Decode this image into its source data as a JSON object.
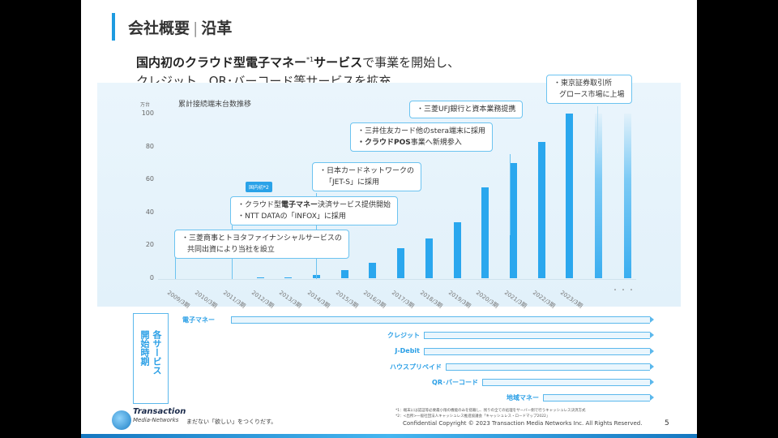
{
  "title": {
    "main": "会社概要",
    "sep": "|",
    "sub": "沿革"
  },
  "headline": {
    "bold": "国内初のクラウド型電子マネー",
    "sup": "*1",
    "bold2": "サービス",
    "rest": "で事業を開始し、",
    "line2": "クレジット、QR･バーコード等サービスを拡充"
  },
  "chart_data": {
    "type": "bar",
    "title": "累計接続端末台数推移",
    "unit": "万台",
    "categories": [
      "2009/3期",
      "2010/3期",
      "2011/3期",
      "2012/3期",
      "2013/3期",
      "2014/3期",
      "2015/3期",
      "2016/3期",
      "2017/3期",
      "2018/3期",
      "2019/3期",
      "2020/3期",
      "2021/3期",
      "2022/3期",
      "2023/3期"
    ],
    "values": [
      0,
      0,
      0,
      0.3,
      0.7,
      2,
      5,
      9.5,
      18,
      24,
      34,
      55,
      70,
      83,
      100
    ],
    "future_label": "・・・",
    "yticks": [
      0,
      20,
      40,
      60,
      80,
      100
    ],
    "ylim": [
      0,
      100
    ]
  },
  "callouts": {
    "c1": [
      "・三菱商事とトヨタファイナンシャルサービスの",
      "共同出資により当社を設立"
    ],
    "c2a_pre": "・クラウド型",
    "c2a_bold": "電子マネー",
    "c2a_post": "決済サービス提供開始",
    "c2b": "・NTT DATAの「INFOX」に採用",
    "badge": "国内初*2",
    "c3": [
      "・日本カードネットワークの",
      "「JET-S」に採用"
    ],
    "c4a": "・三井住友カード他のstera端末に採用",
    "c4b_bold": "・クラウドPOS",
    "c4b_post": "事業へ新規参入",
    "c5": "・三菱UFJ銀行と資本業務提携",
    "c6": [
      "・東京証券取引所",
      "グロース市場に上場"
    ]
  },
  "services": {
    "box_col1": "各サービス",
    "box_col2": "開始時期",
    "items": [
      "電子マネー",
      "クレジット",
      "J-Debit",
      "ハウスプリペイド",
      "QR･バーコード",
      "地域マネー"
    ]
  },
  "footer": {
    "note1": "*1：端末には認証等必要最小限の機能のみを搭載し、残りの全ての処理をサーバー側で行うキャッシュレス決済方式",
    "note2": "*2：<出所>一般社団法人キャッシュレス推進協議会「キャッシュレス・ロードマップ2022」",
    "copyright": "Confidential  Copyright © 2023 Transaction Media Networks Inc. All Rights Reserved.",
    "page": "5",
    "logo_line1": "Transaction",
    "logo_line2": "Media-Networks",
    "tagline": "まだない「欲しい」をつくりだす。"
  }
}
